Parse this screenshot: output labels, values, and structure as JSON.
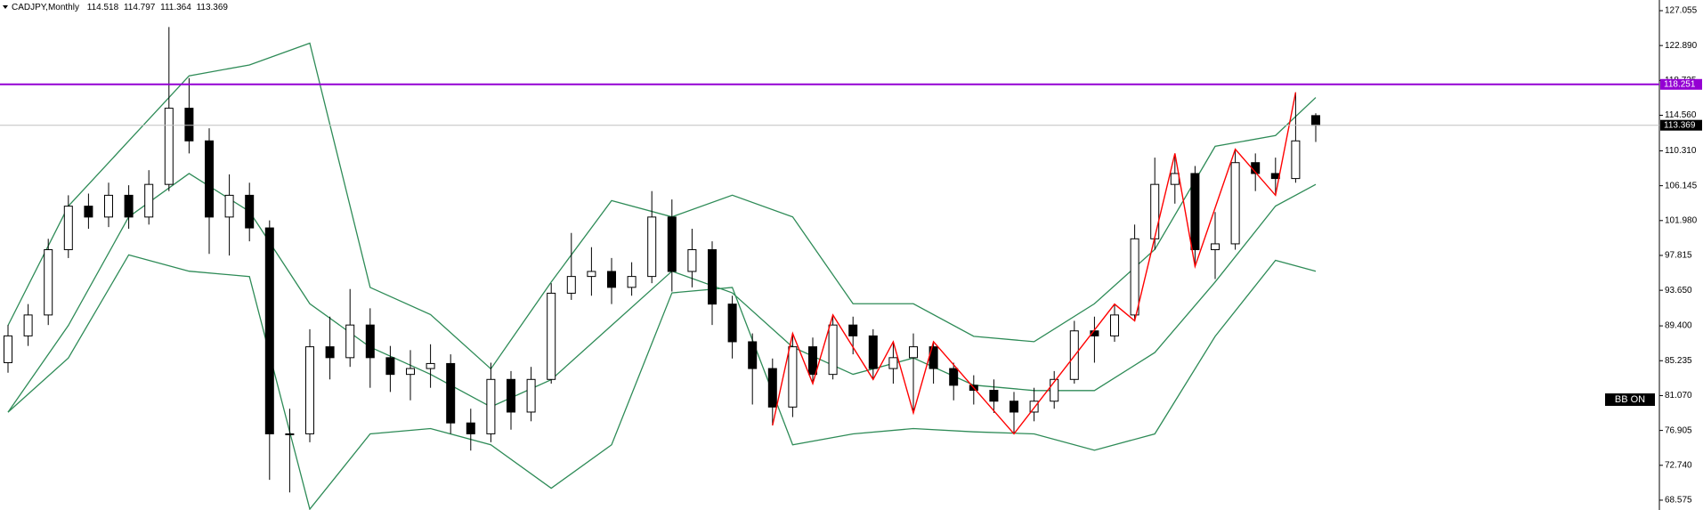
{
  "chart_data": {
    "type": "candlestick",
    "title": "CADJPY,Monthly",
    "header_values": [
      114.518,
      114.797,
      111.364,
      113.369
    ],
    "ohlc": {
      "open": [
        85.0,
        88.2,
        90.7,
        98.5,
        103.7,
        102.4,
        105.0,
        102.4,
        106.3,
        115.4,
        111.5,
        102.4,
        105.0,
        101.1,
        76.5,
        76.5,
        86.9,
        85.6,
        89.5,
        85.6,
        83.6,
        84.3,
        84.9,
        77.8,
        76.5,
        83.0,
        79.1,
        83.0,
        93.3,
        95.3,
        95.9,
        94.0,
        95.3,
        102.4,
        95.9,
        98.5,
        92.0,
        87.5,
        84.3,
        79.7,
        86.9,
        83.6,
        89.5,
        88.2,
        84.3,
        85.6,
        86.9,
        84.3,
        82.3,
        81.7,
        80.4,
        79.1,
        80.4,
        83.0,
        88.8,
        88.2,
        90.7,
        99.8,
        106.3,
        107.6,
        98.5,
        99.2,
        108.9,
        107.6,
        107.0,
        114.518
      ],
      "high": [
        89.5,
        92.0,
        99.8,
        105.0,
        105.2,
        106.5,
        106.2,
        108.0,
        125.1,
        119.0,
        113.0,
        107.5,
        106.5,
        102.0,
        79.5,
        89.0,
        90.5,
        93.8,
        91.5,
        87.0,
        86.5,
        87.2,
        86.0,
        79.5,
        85.0,
        84.0,
        84.5,
        94.5,
        100.5,
        98.8,
        97.5,
        97.0,
        105.5,
        104.5,
        101.0,
        99.5,
        93.0,
        88.5,
        85.5,
        88.5,
        88.0,
        90.7,
        90.5,
        89.0,
        87.5,
        88.5,
        87.5,
        85.0,
        83.5,
        83.0,
        81.5,
        82.0,
        84.0,
        90.0,
        90.5,
        92.0,
        101.5,
        109.5,
        110.0,
        108.5,
        103.0,
        110.5,
        110.0,
        109.5,
        117.3,
        114.797
      ],
      "low": [
        83.8,
        87.0,
        89.5,
        97.5,
        101.0,
        101.2,
        101.0,
        101.5,
        105.5,
        110.0,
        98.0,
        97.8,
        99.5,
        71.0,
        69.5,
        75.5,
        83.0,
        84.5,
        82.0,
        81.5,
        80.5,
        82.0,
        76.5,
        74.5,
        75.5,
        77.0,
        78.0,
        82.5,
        92.5,
        93.0,
        92.0,
        93.0,
        94.5,
        93.5,
        94.0,
        89.5,
        85.5,
        80.0,
        77.5,
        78.5,
        82.5,
        83.0,
        86.0,
        83.0,
        82.5,
        79.0,
        82.5,
        80.5,
        80.0,
        79.0,
        76.5,
        78.0,
        79.5,
        82.5,
        85.0,
        87.5,
        90.0,
        98.5,
        104.0,
        96.5,
        95.0,
        98.5,
        105.5,
        105.0,
        106.5,
        111.364
      ],
      "close": [
        88.2,
        90.7,
        98.5,
        103.7,
        102.4,
        105.0,
        102.4,
        106.3,
        115.4,
        111.5,
        102.4,
        105.0,
        101.1,
        76.5,
        76.5,
        86.9,
        85.6,
        89.5,
        85.6,
        83.6,
        84.3,
        84.9,
        77.8,
        76.5,
        83.0,
        79.1,
        83.0,
        93.3,
        95.3,
        95.9,
        94.0,
        95.3,
        102.4,
        95.9,
        98.5,
        92.0,
        87.5,
        84.3,
        79.7,
        86.9,
        83.6,
        89.5,
        88.2,
        84.3,
        85.6,
        86.9,
        84.3,
        82.3,
        81.7,
        80.4,
        79.1,
        80.4,
        83.0,
        88.8,
        88.2,
        90.7,
        99.8,
        106.3,
        107.6,
        98.5,
        99.2,
        108.9,
        107.6,
        107.0,
        111.5,
        113.369
      ]
    },
    "up_color": "#ffffff",
    "down_color": "#000000",
    "bands": [
      {
        "color": "#2e8b57",
        "x": [
          0,
          3,
          6,
          9,
          12,
          15,
          18,
          21,
          24,
          27,
          30,
          33,
          36,
          39,
          42,
          45,
          48,
          51,
          54,
          57,
          60,
          63,
          65
        ],
        "values": [
          89.45,
          103.71,
          111.49,
          119.27,
          120.57,
          123.17,
          93.99,
          90.75,
          84.26,
          94.64,
          104.36,
          102.42,
          105.01,
          102.42,
          92.04,
          92.04,
          88.15,
          87.51,
          92.04,
          98.53,
          110.85,
          112.14,
          116.68
        ]
      },
      {
        "color": "#2e8b57",
        "x": [
          0,
          3,
          6,
          9,
          12,
          15,
          18,
          21,
          24,
          27,
          30,
          33,
          36,
          39,
          42,
          45,
          48,
          51,
          54,
          57,
          60,
          63,
          65
        ],
        "values": [
          79.08,
          89.45,
          102.42,
          107.6,
          103.07,
          92.04,
          86.86,
          83.61,
          79.72,
          82.97,
          89.45,
          95.93,
          93.34,
          86.86,
          83.61,
          85.56,
          82.32,
          81.67,
          81.67,
          86.21,
          94.64,
          103.71,
          106.3
        ]
      },
      {
        "color": "#2e8b57",
        "x": [
          0,
          3,
          6,
          9,
          12,
          15,
          18,
          21,
          24,
          27,
          30,
          33,
          36,
          39,
          42,
          45,
          48,
          51,
          54,
          57,
          60,
          63,
          65
        ],
        "values": [
          79.08,
          85.56,
          97.88,
          95.93,
          95.29,
          67.5,
          76.49,
          77.13,
          75.19,
          70.0,
          75.19,
          93.34,
          93.99,
          75.19,
          76.49,
          77.13,
          76.74,
          76.49,
          74.54,
          76.49,
          88.15,
          97.23,
          95.93
        ]
      }
    ],
    "zigzag": {
      "color": "#ff0000",
      "x": [
        38,
        39,
        40,
        41,
        43,
        44,
        45,
        46,
        50,
        55,
        56,
        58,
        59,
        61,
        63,
        64
      ],
      "values": [
        77.5,
        88.5,
        82.5,
        90.7,
        83.0,
        87.5,
        79.0,
        87.5,
        76.5,
        92.0,
        90.0,
        110.0,
        96.5,
        110.5,
        105.0,
        117.3
      ]
    },
    "levels": [
      {
        "value": 118.251,
        "color": "#9400d3"
      }
    ],
    "current_price_color": "#c0c0c0",
    "ylim": [
      67.4,
      128.33
    ],
    "yticks": [
      {
        "value": 127.055,
        "label": "127.055"
      },
      {
        "value": 122.89,
        "label": "122.890"
      },
      {
        "value": 118.725,
        "label": "118.725"
      },
      {
        "value": 114.56,
        "label": "114.560"
      },
      {
        "value": 110.31,
        "label": "110.310"
      },
      {
        "value": 106.145,
        "label": "106.145"
      },
      {
        "value": 101.98,
        "label": "101.980"
      },
      {
        "value": 97.815,
        "label": "97.815"
      },
      {
        "value": 93.65,
        "label": "93.650"
      },
      {
        "value": 89.4,
        "label": "89.400"
      },
      {
        "value": 85.235,
        "label": "85.235"
      },
      {
        "value": 81.07,
        "label": "81.070"
      },
      {
        "value": 76.905,
        "label": "76.905"
      },
      {
        "value": 72.74,
        "label": "72.740"
      },
      {
        "value": 68.575,
        "label": "68.575"
      }
    ],
    "indicator_label": "BB ON"
  }
}
